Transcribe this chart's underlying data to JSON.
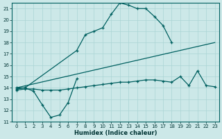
{
  "xlabel": "Humidex (Indice chaleur)",
  "xlim": [
    -0.5,
    23.5
  ],
  "ylim": [
    11,
    21.5
  ],
  "background_color": "#cce8e8",
  "grid_color": "#aad4d4",
  "line_color": "#006060",
  "lines": [
    {
      "x": [
        0,
        1,
        2,
        3,
        4,
        5,
        6,
        7
      ],
      "y": [
        13.9,
        14.0,
        13.7,
        12.5,
        11.4,
        11.6,
        12.7,
        14.8
      ],
      "marker": "+"
    },
    {
      "x": [
        0,
        1,
        7,
        8,
        9,
        10,
        11,
        12,
        13,
        14,
        15,
        16,
        17,
        18
      ],
      "y": [
        14.0,
        14.0,
        17.3,
        18.7,
        19.0,
        19.3,
        20.5,
        21.5,
        21.3,
        21.0,
        21.0,
        20.3,
        19.5,
        18.0
      ],
      "marker": "+"
    },
    {
      "x": [
        0,
        23
      ],
      "y": [
        14.0,
        18.0
      ],
      "marker": null
    },
    {
      "x": [
        0,
        1,
        2,
        3,
        4,
        5,
        6,
        7,
        8,
        9,
        10,
        11,
        12,
        13,
        14,
        15,
        16,
        17,
        18,
        19,
        20,
        21,
        22,
        23
      ],
      "y": [
        13.8,
        13.9,
        13.9,
        13.8,
        13.8,
        13.8,
        13.9,
        14.0,
        14.1,
        14.2,
        14.3,
        14.4,
        14.5,
        14.5,
        14.6,
        14.7,
        14.7,
        14.6,
        14.5,
        15.0,
        14.2,
        15.5,
        14.2,
        14.1
      ],
      "marker": "+"
    }
  ],
  "yticks": [
    11,
    12,
    13,
    14,
    15,
    16,
    17,
    18,
    19,
    20,
    21
  ],
  "xticks": [
    0,
    1,
    2,
    3,
    4,
    5,
    6,
    7,
    8,
    9,
    10,
    11,
    12,
    13,
    14,
    15,
    16,
    17,
    18,
    19,
    20,
    21,
    22,
    23
  ]
}
